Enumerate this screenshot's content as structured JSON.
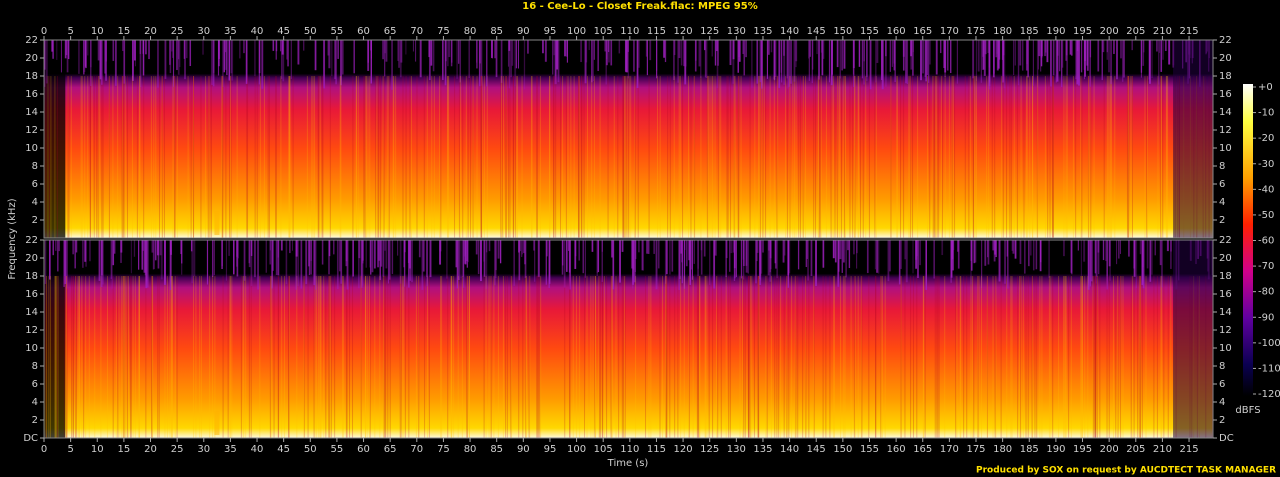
{
  "chart_data": {
    "type": "spectrogram",
    "title": "16 - Cee-Lo - Closet Freak.flac: MPEG 95%",
    "x_label": "Time (s)",
    "y_label": "Frequency (kHz)",
    "xlim": [
      0,
      219.5
    ],
    "xticks": [
      0,
      5,
      10,
      15,
      20,
      25,
      30,
      35,
      40,
      45,
      50,
      55,
      60,
      65,
      70,
      75,
      80,
      85,
      90,
      95,
      100,
      105,
      110,
      115,
      120,
      125,
      130,
      135,
      140,
      145,
      150,
      155,
      160,
      165,
      170,
      175,
      180,
      185,
      190,
      195,
      200,
      205,
      210,
      215
    ],
    "panels": [
      {
        "ylim": [
          0,
          22
        ],
        "yticks": [
          2,
          4,
          6,
          8,
          10,
          12,
          14,
          16,
          18,
          20,
          22
        ]
      },
      {
        "ylim": [
          0,
          22
        ],
        "yticks": [
          {
            "value": 0,
            "label": "DC"
          },
          2,
          4,
          6,
          8,
          10,
          12,
          14,
          16,
          18,
          20,
          22
        ]
      }
    ],
    "colorbar": {
      "label": "dBFS",
      "lim": [
        -120,
        0
      ],
      "ticks": [
        {
          "value": 0,
          "label": "+0"
        },
        -10,
        -20,
        -30,
        -40,
        -50,
        -60,
        -70,
        -80,
        -90,
        -100,
        -110,
        -120
      ]
    },
    "footer": "Produced by SOX on request by AUCDTECT TASK MANAGER"
  }
}
